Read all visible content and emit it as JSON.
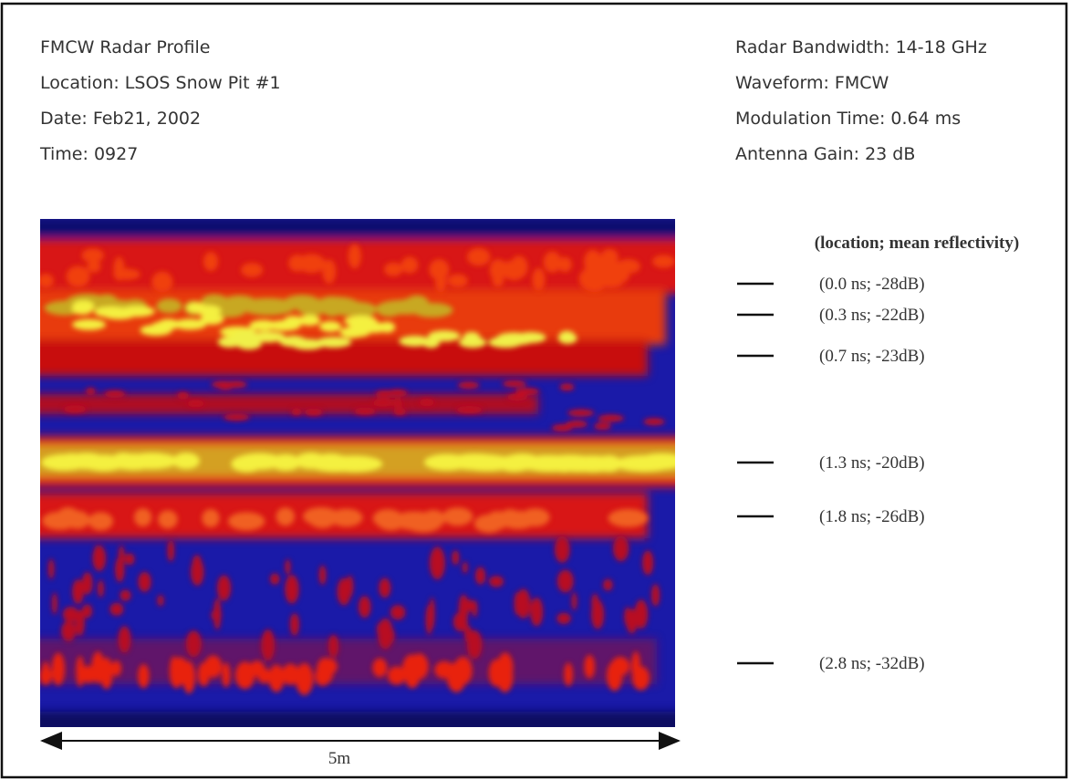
{
  "header": {
    "left": [
      "FMCW Radar Profile",
      "Location: LSOS Snow Pit #1",
      "Date: Feb21, 2002",
      "Time: 0927"
    ],
    "right": [
      "Radar Bandwidth: 14-18 GHz",
      "Waveform: FMCW",
      "Modulation Time: 0.64 ms",
      "Antenna Gain: 23 dB"
    ]
  },
  "legend": {
    "title": "(location; mean reflectivity)",
    "items": [
      "(0.0 ns; -28dB)",
      "(0.3 ns; -22dB)",
      "(0.7 ns; -23dB)",
      "(1.3 ns; -20dB)",
      "(1.8 ns; -26dB)",
      "(2.8 ns; -32dB)"
    ]
  },
  "scale": {
    "label": "5m"
  }
}
